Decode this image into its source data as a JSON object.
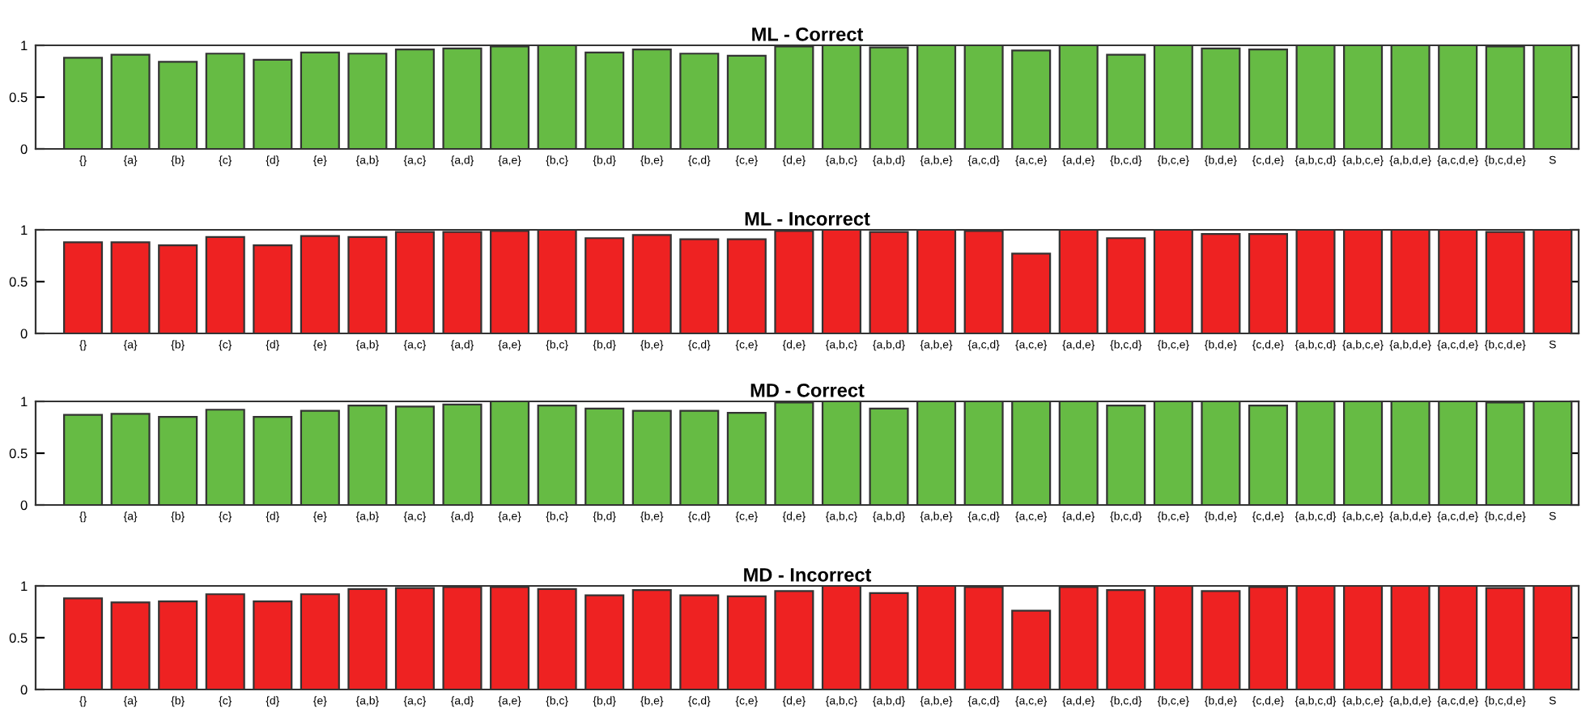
{
  "chart_data": [
    {
      "type": "bar",
      "title": "ML - Correct",
      "categories": [
        "{}",
        "{a}",
        "{b}",
        "{c}",
        "{d}",
        "{e}",
        "{a,b}",
        "{a,c}",
        "{a,d}",
        "{a,e}",
        "{b,c}",
        "{b,d}",
        "{b,e}",
        "{c,d}",
        "{c,e}",
        "{d,e}",
        "{a,b,c}",
        "{a,b,d}",
        "{a,b,e}",
        "{a,c,d}",
        "{a,c,e}",
        "{a,d,e}",
        "{b,c,d}",
        "{b,c,e}",
        "{b,d,e}",
        "{c,d,e}",
        "{a,b,c,d}",
        "{a,b,c,e}",
        "{a,b,d,e}",
        "{a,c,d,e}",
        "{b,c,d,e}",
        "S"
      ],
      "color": "#66bb44",
      "ylim": [
        0,
        1
      ],
      "yticks": [
        0,
        0.5,
        1
      ],
      "values": [
        0.88,
        0.91,
        0.84,
        0.92,
        0.86,
        0.93,
        0.92,
        0.96,
        0.97,
        0.99,
        1,
        0.93,
        0.96,
        0.92,
        0.9,
        0.99,
        1,
        0.98,
        1,
        1,
        0.95,
        1,
        0.91,
        1,
        0.97,
        0.96,
        1,
        1,
        1,
        1,
        0.99,
        1
      ]
    },
    {
      "type": "bar",
      "title": "ML - Incorrect",
      "categories": [
        "{}",
        "{a}",
        "{b}",
        "{c}",
        "{d}",
        "{e}",
        "{a,b}",
        "{a,c}",
        "{a,d}",
        "{a,e}",
        "{b,c}",
        "{b,d}",
        "{b,e}",
        "{c,d}",
        "{c,e}",
        "{d,e}",
        "{a,b,c}",
        "{a,b,d}",
        "{a,b,e}",
        "{a,c,d}",
        "{a,c,e}",
        "{a,d,e}",
        "{b,c,d}",
        "{b,c,e}",
        "{b,d,e}",
        "{c,d,e}",
        "{a,b,c,d}",
        "{a,b,c,e}",
        "{a,b,d,e}",
        "{a,c,d,e}",
        "{b,c,d,e}",
        "S"
      ],
      "color": "#ee2222",
      "ylim": [
        0,
        1
      ],
      "yticks": [
        0,
        0.5,
        1
      ],
      "values": [
        0.88,
        0.88,
        0.85,
        0.93,
        0.85,
        0.94,
        0.93,
        0.98,
        0.98,
        0.99,
        1,
        0.92,
        0.95,
        0.91,
        0.91,
        0.99,
        1,
        0.98,
        1,
        0.99,
        0.77,
        1,
        0.92,
        1,
        0.96,
        0.96,
        1,
        1,
        1,
        1,
        0.98,
        1
      ]
    },
    {
      "type": "bar",
      "title": "MD - Correct",
      "categories": [
        "{}",
        "{a}",
        "{b}",
        "{c}",
        "{d}",
        "{e}",
        "{a,b}",
        "{a,c}",
        "{a,d}",
        "{a,e}",
        "{b,c}",
        "{b,d}",
        "{b,e}",
        "{c,d}",
        "{c,e}",
        "{d,e}",
        "{a,b,c}",
        "{a,b,d}",
        "{a,b,e}",
        "{a,c,d}",
        "{a,c,e}",
        "{a,d,e}",
        "{b,c,d}",
        "{b,c,e}",
        "{b,d,e}",
        "{c,d,e}",
        "{a,b,c,d}",
        "{a,b,c,e}",
        "{a,b,d,e}",
        "{a,c,d,e}",
        "{b,c,d,e}",
        "S"
      ],
      "color": "#66bb44",
      "ylim": [
        0,
        1
      ],
      "yticks": [
        0,
        0.5,
        1
      ],
      "values": [
        0.87,
        0.88,
        0.85,
        0.92,
        0.85,
        0.91,
        0.96,
        0.95,
        0.97,
        1,
        0.96,
        0.93,
        0.91,
        0.91,
        0.89,
        0.99,
        1,
        0.93,
        1,
        1,
        1,
        1,
        0.96,
        1,
        1,
        0.96,
        1,
        1,
        1,
        1,
        0.99,
        1
      ]
    },
    {
      "type": "bar",
      "title": "MD - Incorrect",
      "categories": [
        "{}",
        "{a}",
        "{b}",
        "{c}",
        "{d}",
        "{e}",
        "{a,b}",
        "{a,c}",
        "{a,d}",
        "{a,e}",
        "{b,c}",
        "{b,d}",
        "{b,e}",
        "{c,d}",
        "{c,e}",
        "{d,e}",
        "{a,b,c}",
        "{a,b,d}",
        "{a,b,e}",
        "{a,c,d}",
        "{a,c,e}",
        "{a,d,e}",
        "{b,c,d}",
        "{b,c,e}",
        "{b,d,e}",
        "{c,d,e}",
        "{a,b,c,d}",
        "{a,b,c,e}",
        "{a,b,d,e}",
        "{a,c,d,e}",
        "{b,c,d,e}",
        "S"
      ],
      "color": "#ee2222",
      "ylim": [
        0,
        1
      ],
      "yticks": [
        0,
        0.5,
        1
      ],
      "values": [
        0.88,
        0.84,
        0.85,
        0.92,
        0.85,
        0.92,
        0.97,
        0.98,
        0.99,
        0.99,
        0.97,
        0.91,
        0.96,
        0.91,
        0.9,
        0.95,
        1,
        0.93,
        1,
        0.99,
        0.76,
        0.99,
        0.96,
        1,
        0.95,
        0.99,
        1,
        1,
        1,
        1,
        0.98,
        1
      ]
    }
  ]
}
